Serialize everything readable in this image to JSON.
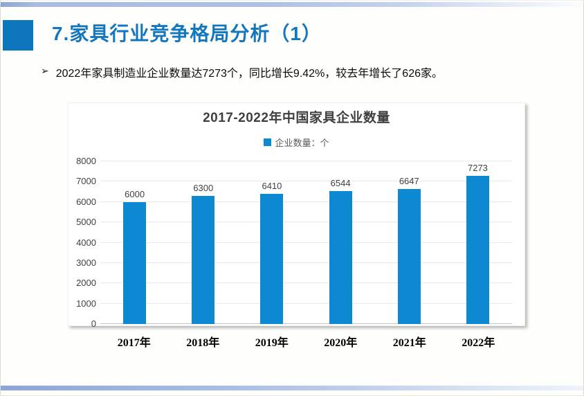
{
  "slide": {
    "title": "7.家具行业竞争格局分析（1）",
    "bullet_marker": "➢",
    "bullet": "2022年家具制造业企业数量达7273个，同比增长9.42%，较去年增长了626家。"
  },
  "chart_data": {
    "type": "bar",
    "title": "2017-2022年中国家具企业数量",
    "legend": "企业数量：个",
    "legend_position": "top",
    "categories": [
      "2017年",
      "2018年",
      "2019年",
      "2020年",
      "2021年",
      "2022年"
    ],
    "values": [
      6000,
      6300,
      6410,
      6544,
      6647,
      7273
    ],
    "xlabel": "",
    "ylabel": "",
    "ylim": [
      0,
      8000
    ],
    "yticks": [
      0,
      1000,
      2000,
      3000,
      4000,
      5000,
      6000,
      7000,
      8000
    ],
    "grid": true,
    "bar_color": "#0d89d1"
  },
  "colors": {
    "title_blue": "#1477be",
    "accent_square_blue": "#0e76bc",
    "bar_blue": "#0d89d1"
  }
}
